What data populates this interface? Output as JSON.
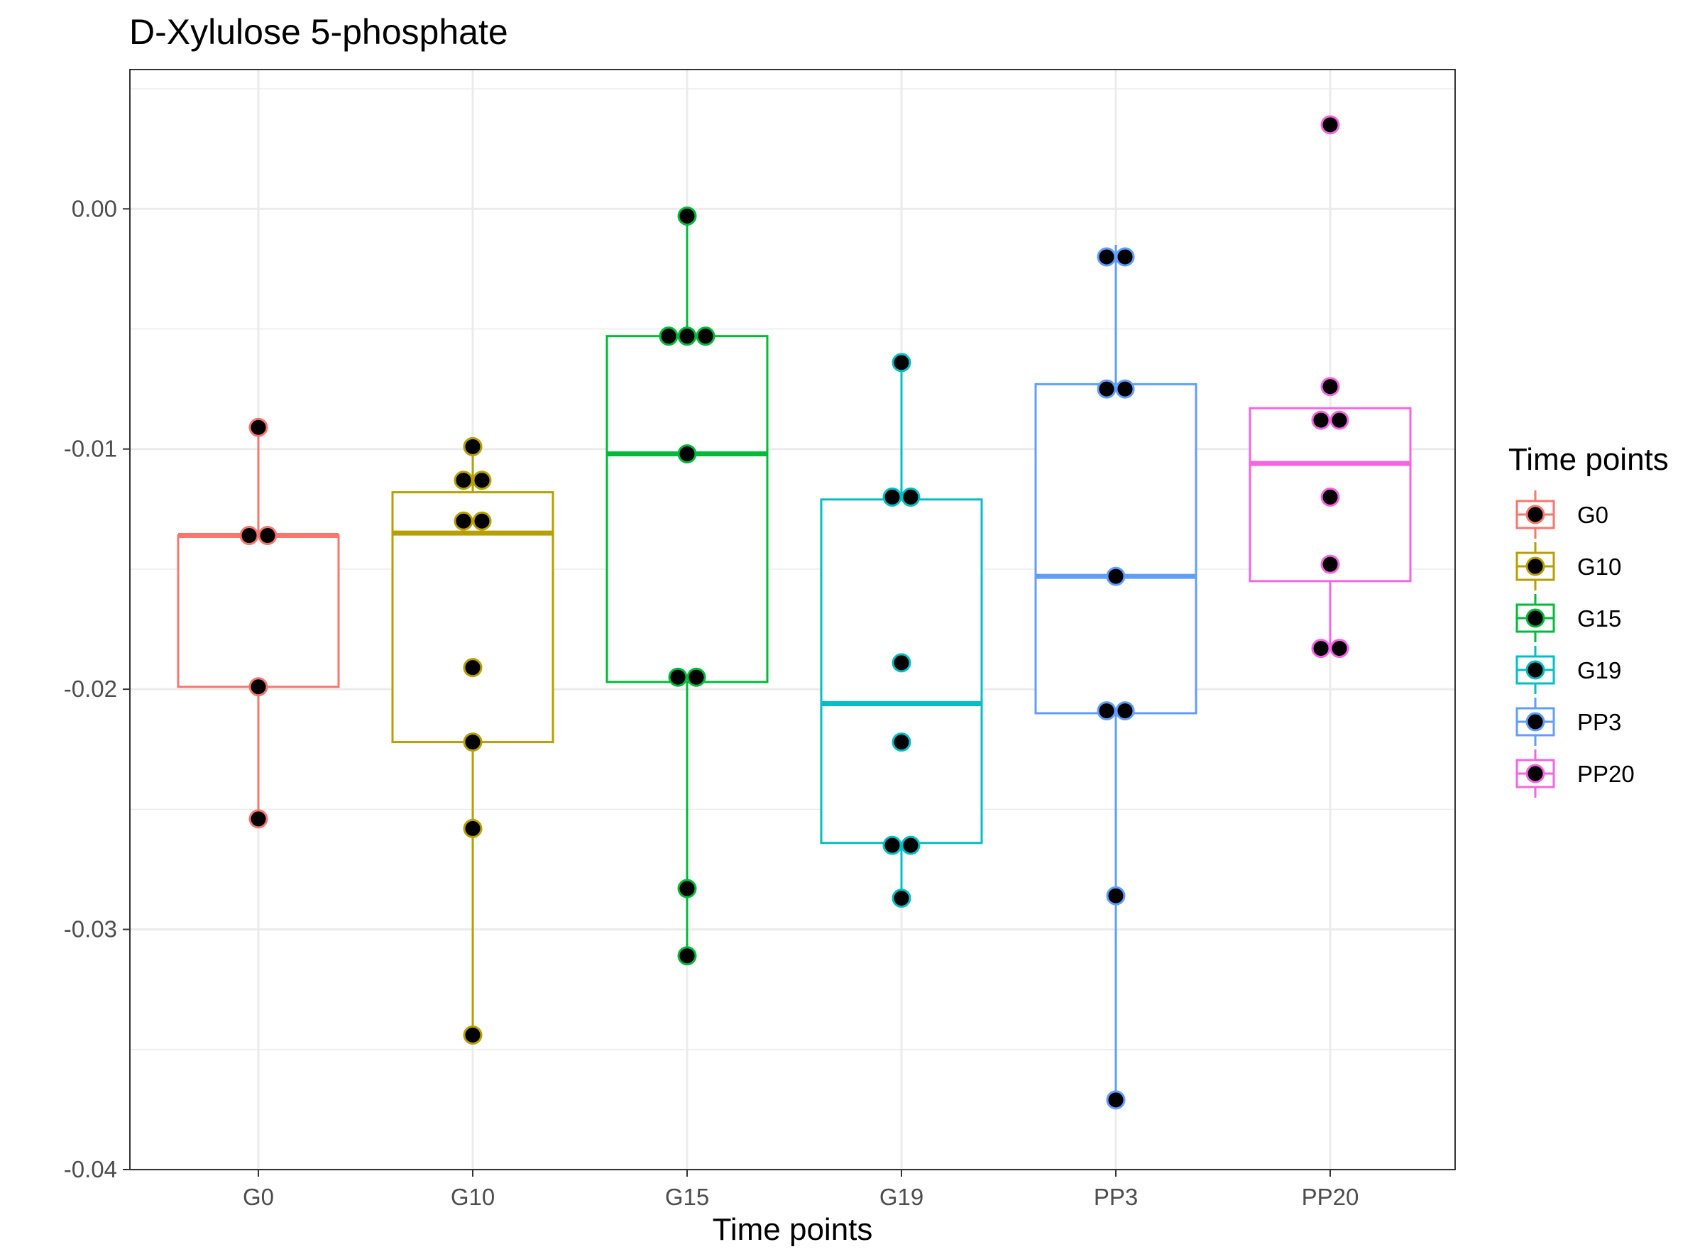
{
  "chart_data": {
    "type": "boxplot",
    "title": "D-Xylulose 5-phosphate",
    "xlabel": "Time points",
    "ylabel": "",
    "ylim": [
      -0.04,
      0.0058
    ],
    "yticks": [
      -0.04,
      -0.03,
      -0.02,
      -0.01,
      0.0
    ],
    "ytick_labels": [
      "-0.04",
      "-0.03",
      "-0.02",
      "-0.01",
      "0.00"
    ],
    "categories": [
      "G0",
      "G10",
      "G15",
      "G19",
      "PP3",
      "PP20"
    ],
    "grid": true,
    "legend": {
      "title": "Time points",
      "position": "right",
      "entries": [
        "G0",
        "G10",
        "G15",
        "G19",
        "PP3",
        "PP20"
      ]
    },
    "series": [
      {
        "name": "G0",
        "color": "#F8766D",
        "box": {
          "min": -0.0254,
          "q1": -0.0199,
          "median": -0.0136,
          "q3": -0.0136,
          "max": -0.0091
        },
        "points": [
          -0.0091,
          -0.0136,
          -0.0136,
          -0.0199,
          -0.0254
        ]
      },
      {
        "name": "G10",
        "color": "#B79F00",
        "box": {
          "min": -0.0344,
          "q1": -0.0222,
          "median": -0.0135,
          "q3": -0.0118,
          "max": -0.0099
        },
        "points": [
          -0.0099,
          -0.0113,
          -0.0113,
          -0.013,
          -0.013,
          -0.0191,
          -0.0222,
          -0.0258,
          -0.0344
        ]
      },
      {
        "name": "G15",
        "color": "#00BA38",
        "box": {
          "min": -0.0311,
          "q1": -0.0197,
          "median": -0.0102,
          "q3": -0.0053,
          "max": -0.0003
        },
        "points": [
          -0.0003,
          -0.0053,
          -0.0053,
          -0.0053,
          -0.0102,
          -0.0195,
          -0.0195,
          -0.0283,
          -0.0311
        ]
      },
      {
        "name": "G19",
        "color": "#00BFC4",
        "box": {
          "min": -0.0287,
          "q1": -0.0264,
          "median": -0.0206,
          "q3": -0.0121,
          "max": -0.0064
        },
        "points": [
          -0.0064,
          -0.012,
          -0.012,
          -0.0189,
          -0.0222,
          -0.0265,
          -0.0265,
          -0.0287
        ]
      },
      {
        "name": "PP3",
        "color": "#619CFF",
        "box": {
          "min": -0.0371,
          "q1": -0.021,
          "median": -0.0153,
          "q3": -0.0073,
          "max": -0.0015
        },
        "points": [
          -0.002,
          -0.002,
          -0.0075,
          -0.0075,
          -0.0153,
          -0.0209,
          -0.0209,
          -0.0286,
          -0.0371
        ]
      },
      {
        "name": "PP20",
        "color": "#F564E3",
        "box": {
          "min": -0.0183,
          "q1": -0.0155,
          "median": -0.0106,
          "q3": -0.0083,
          "max": -0.0083
        },
        "points": [
          0.0035,
          -0.0074,
          -0.0088,
          -0.0088,
          -0.012,
          -0.0148,
          -0.0183,
          -0.0183
        ]
      }
    ]
  }
}
